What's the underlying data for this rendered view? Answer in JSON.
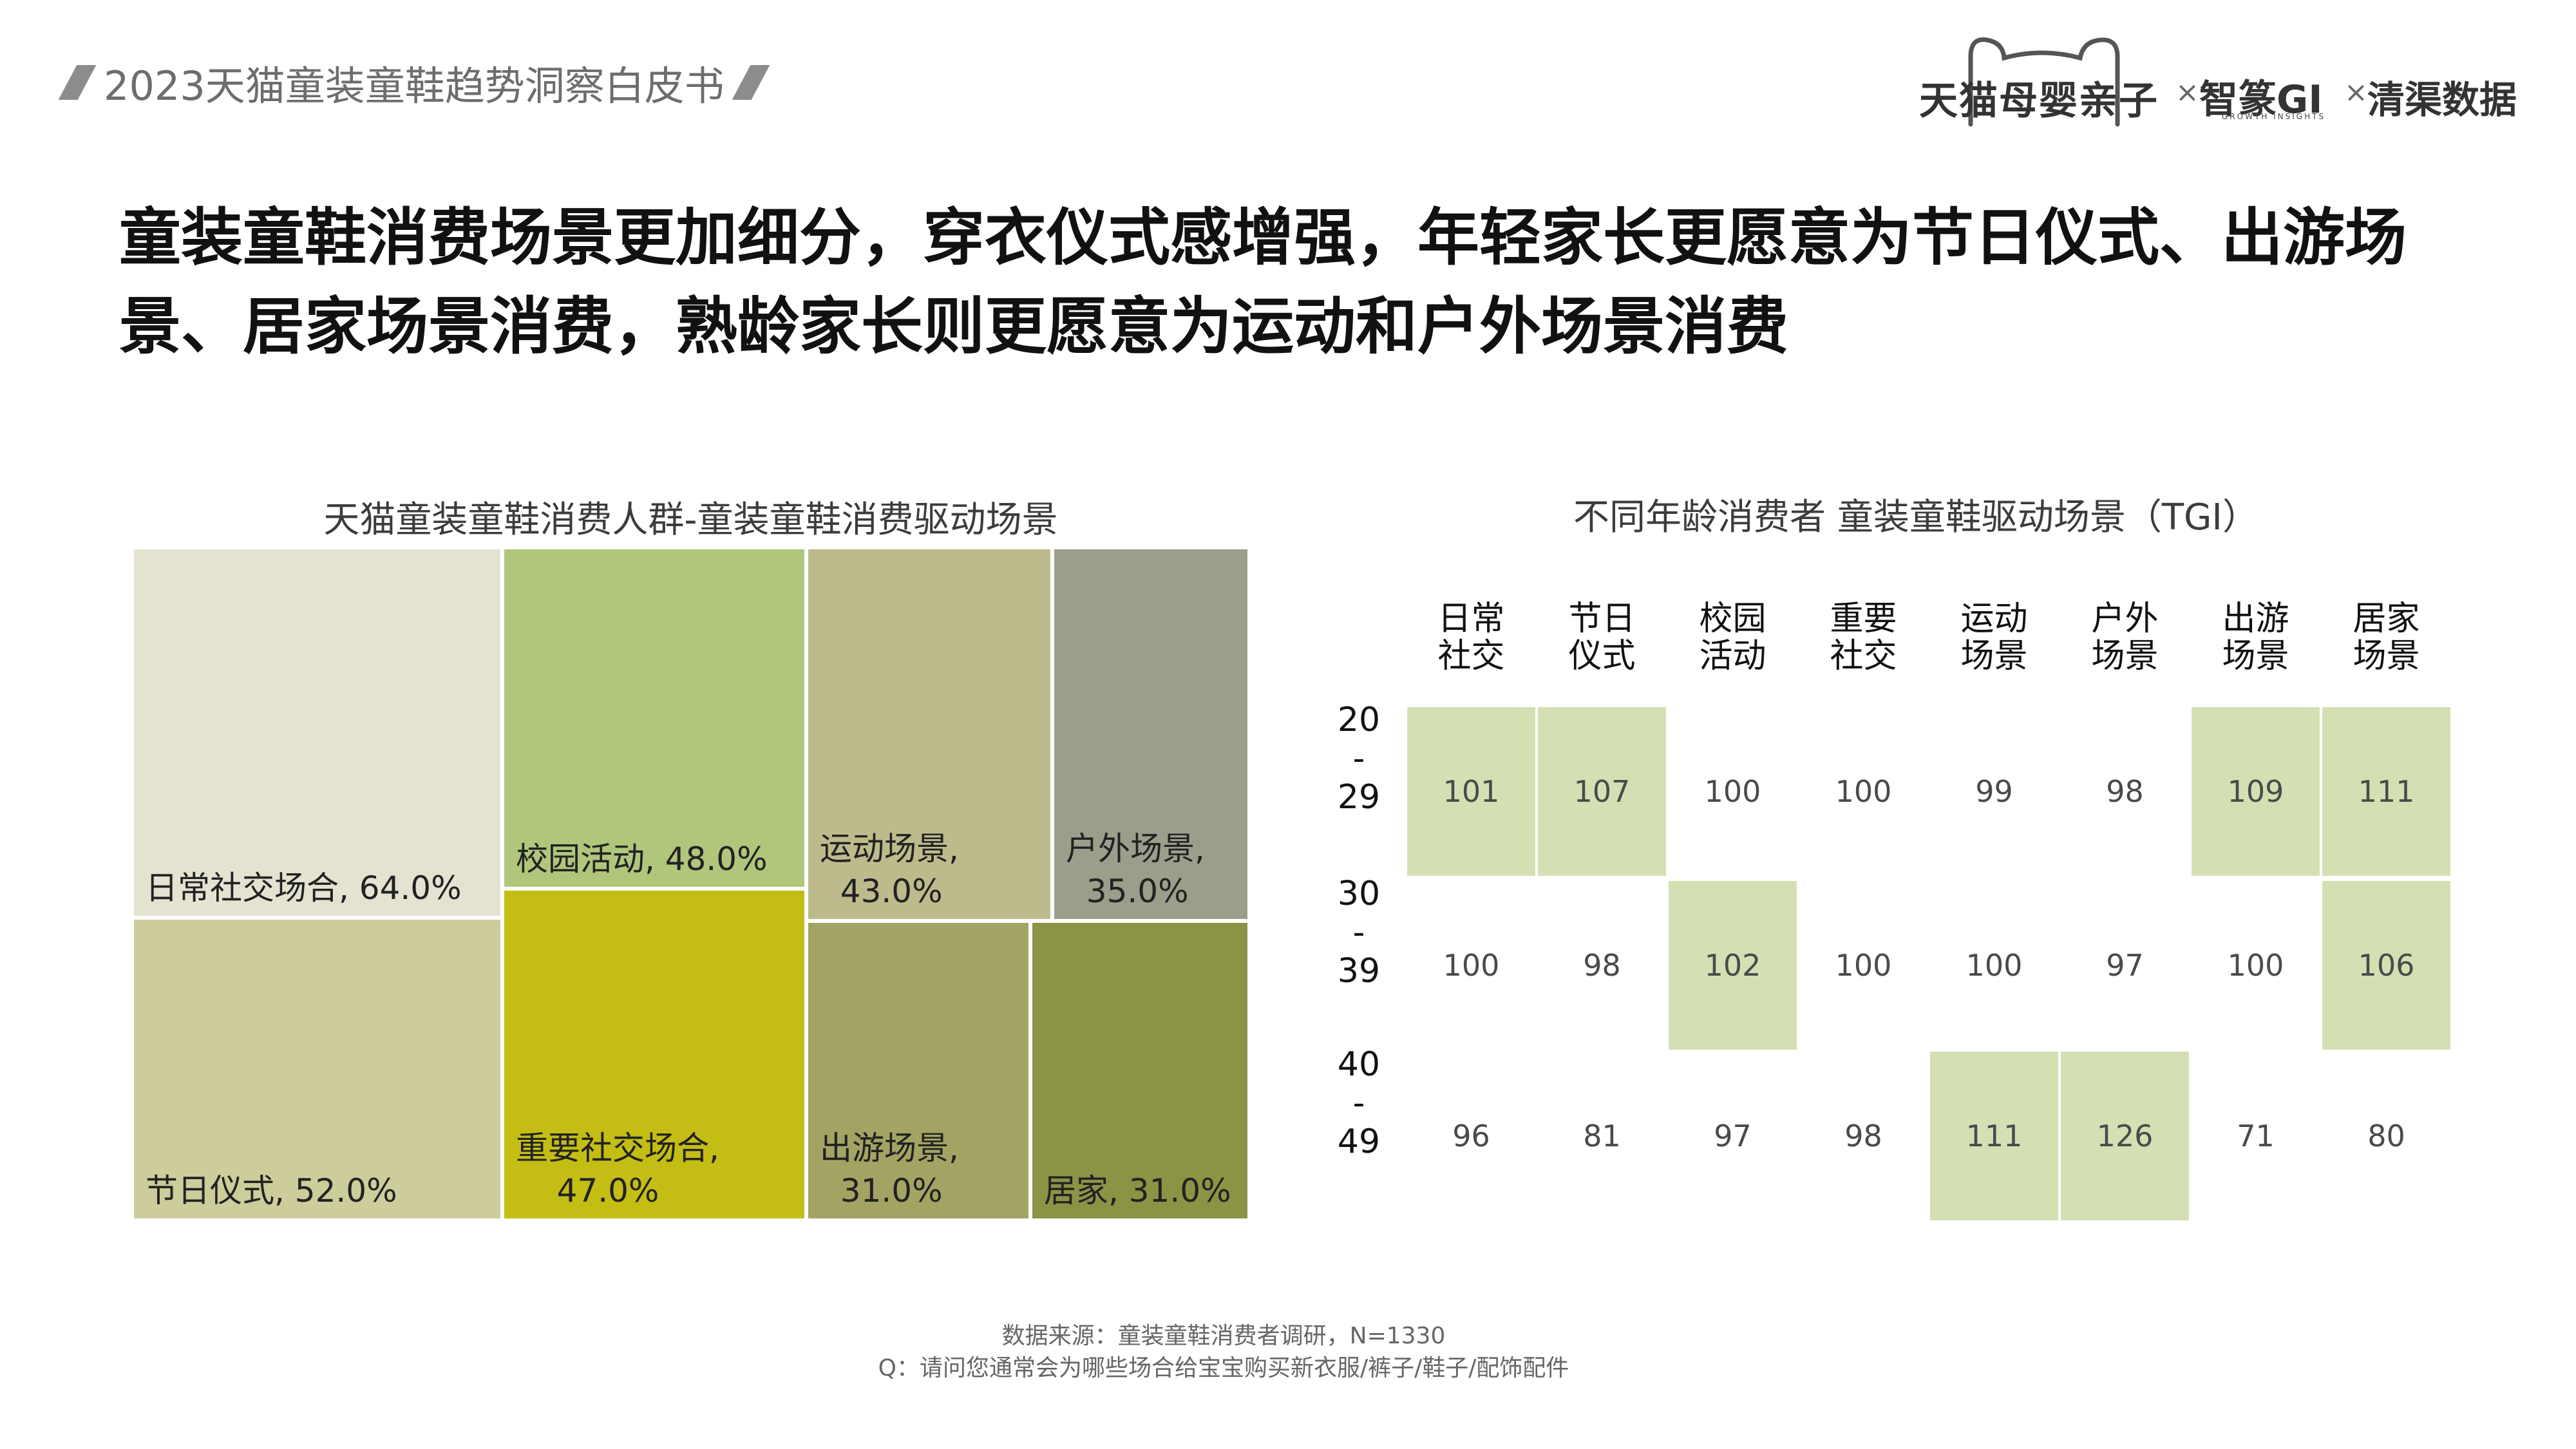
{
  "header": {
    "tag": "2023天猫童装童鞋趋势洞察白皮书"
  },
  "logos": {
    "brand1": "天猫母婴亲子",
    "sep": "×",
    "brand2": "智篆GI",
    "brand2_sub": "GROWTH INSIGHTS",
    "brand3": "清渠数据"
  },
  "main_title": "童装童鞋消费场景更加细分，穿衣仪式感增强，年轻家长更愿意为节日仪式、出游场景、居家场景消费，熟龄家长则更愿意为运动和户外场景消费",
  "chart_data": [
    {
      "type": "treemap",
      "title": "天猫童装童鞋消费人群-童装童鞋消费驱动场景",
      "unit": "%",
      "items": [
        {
          "label": "日常社交场合",
          "value": 64.0,
          "text": "日常社交场合, 64.0%",
          "color": "#e4e3d2"
        },
        {
          "label": "节日仪式",
          "value": 52.0,
          "text": "节日仪式, 52.0%",
          "color": "#cccd9b"
        },
        {
          "label": "校园活动",
          "value": 48.0,
          "text": "校园活动, 48.0%",
          "color": "#b0c67b"
        },
        {
          "label": "重要社交场合",
          "value": 47.0,
          "text": "重要社交场合,\n    47.0%",
          "color": "#c3bd14"
        },
        {
          "label": "运动场景",
          "value": 43.0,
          "text": "运动场景,\n  43.0%",
          "color": "#bdbb8c"
        },
        {
          "label": "户外场景",
          "value": 35.0,
          "text": "户外场景,\n  35.0%",
          "color": "#9b9e8b"
        },
        {
          "label": "出游场景",
          "value": 31.0,
          "text": "出游场景,\n  31.0%",
          "color": "#a3a463"
        },
        {
          "label": "居家",
          "value": 31.0,
          "text": "居家, 31.0%",
          "color": "#8b9345"
        }
      ]
    },
    {
      "type": "heatmap",
      "title": "不同年龄消费者 童装童鞋驱动场景（TGI）",
      "columns": [
        "日常\n社交",
        "节日\n仪式",
        "校园\n活动",
        "重要\n社交",
        "运动\n场景",
        "户外\n场景",
        "出游\n场景",
        "居家\n场景"
      ],
      "rows": [
        "20\n-\n29",
        "30\n-\n39",
        "40\n-\n49"
      ],
      "values": [
        [
          101,
          107,
          100,
          100,
          99,
          98,
          109,
          111
        ],
        [
          100,
          98,
          102,
          100,
          100,
          97,
          100,
          106
        ],
        [
          96,
          81,
          97,
          98,
          111,
          126,
          71,
          80
        ]
      ],
      "highlight": [
        [
          true,
          true,
          false,
          false,
          false,
          false,
          true,
          true
        ],
        [
          false,
          false,
          true,
          false,
          false,
          false,
          false,
          true
        ],
        [
          false,
          false,
          false,
          false,
          true,
          true,
          false,
          false
        ]
      ],
      "highlight_color": "#d4e0b3"
    }
  ],
  "footnote": {
    "source": "数据来源：童装童鞋消费者调研，N=1330",
    "question": "Q：请问您通常会为哪些场合给宝宝购买新衣服/裤子/鞋子/配饰配件"
  }
}
